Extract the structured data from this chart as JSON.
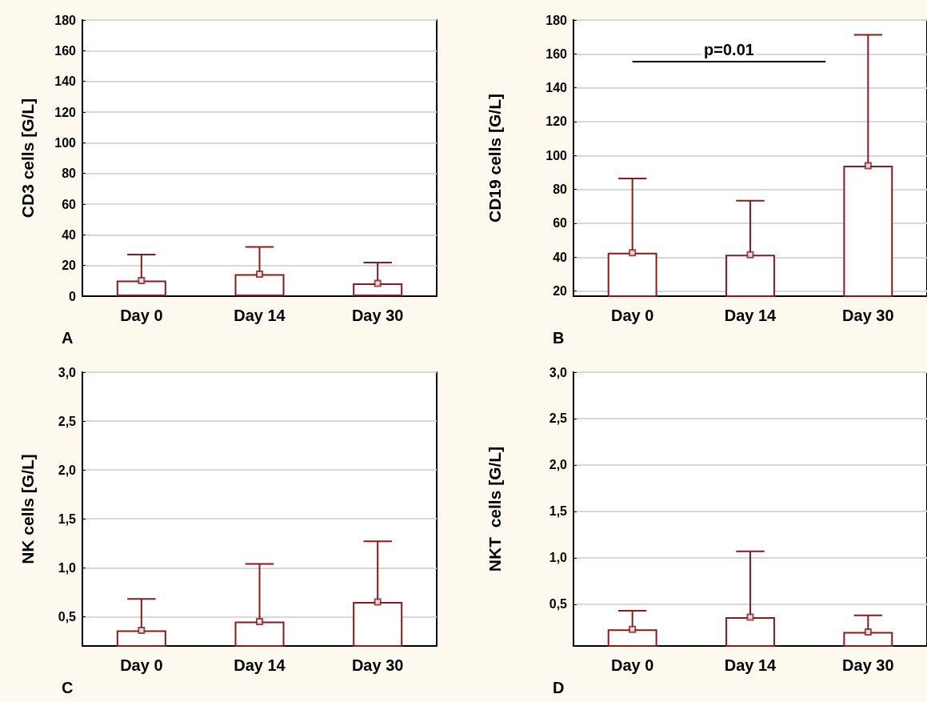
{
  "chart_data": [
    {
      "type": "bar",
      "ylabel": "CD3 cells [G/L]",
      "categories": [
        "Day 0",
        "Day 14",
        "Day 30"
      ],
      "marker": "square",
      "grid": "y",
      "series": [
        {
          "color": "#8b1a1a",
          "values": [
            10.2,
            14.4,
            8.3
          ],
          "errors": [
            [
              10.2,
              27.1
            ],
            [
              14.4,
              32.1
            ],
            [
              8.3,
              21.9
            ]
          ]
        },
        {
          "type": "scatter",
          "color": "#8b1a1a",
          "x": [
            "Day 0",
            "Day 14",
            "Day 30"
          ],
          "values": [
            10.2,
            14.4,
            8.3
          ]
        }
      ],
      "ylim": [
        0,
        180
      ],
      "yticks": [
        0,
        20,
        40,
        60,
        80,
        100,
        120,
        140,
        160,
        180
      ],
      "annotations": [
        "A"
      ]
    },
    {
      "type": "bar",
      "ylabel": "CD19 cells [G/L]",
      "categories": [
        "Day 0",
        "Day 14",
        "Day 30"
      ],
      "marker": "square",
      "grid": "y",
      "series": [
        {
          "color": "#8b1a1a",
          "values": [
            42.6,
            41.5,
            94
          ],
          "errors": [
            [
              42.6,
              86.5
            ],
            [
              41.5,
              73.3
            ],
            [
              94,
              171.3
            ]
          ]
        },
        {
          "type": "scatter",
          "color": "#8b1a1a",
          "x": [
            "Day 0",
            "Day 14",
            "Day 30"
          ],
          "values": [
            42.6,
            41.5,
            94
          ]
        }
      ],
      "ylim": [
        17,
        180
      ],
      "yticks": [
        20,
        40,
        60,
        80,
        100,
        120,
        140,
        160,
        180
      ],
      "annotations": [
        "B",
        "p=0.01"
      ]
    },
    {
      "type": "bar",
      "ylabel": "NK cells [G/L]",
      "categories": [
        "Day 0",
        "Day 14",
        "Day 30"
      ],
      "marker": "square",
      "grid": "y",
      "series": [
        {
          "color": "#8b1a1a",
          "values": [
            0.36,
            0.45,
            0.65
          ],
          "errors": [
            [
              0.36,
              0.68
            ],
            [
              0.45,
              1.04
            ],
            [
              0.65,
              1.27
            ]
          ]
        },
        {
          "type": "scatter",
          "color": "#8b1a1a",
          "x": [
            "Day 0",
            "Day 14",
            "Day 30"
          ],
          "values": [
            0.36,
            0.45,
            0.65
          ]
        }
      ],
      "ylim": [
        0.2,
        3
      ],
      "yticks": [
        {
          "value": 0.5,
          "label": "0,5"
        },
        {
          "value": 1,
          "label": "1,0"
        },
        {
          "value": 1.5,
          "label": "1,5"
        },
        {
          "value": 2,
          "label": "2,0"
        },
        {
          "value": 2.5,
          "label": "2,5"
        },
        {
          "value": 3,
          "label": "3,0"
        }
      ],
      "annotations": [
        "C"
      ]
    },
    {
      "type": "bar",
      "ylabel": "NKT  cells [G/L]",
      "categories": [
        "Day 0",
        "Day 14",
        "Day 30"
      ],
      "marker": "square",
      "grid": "y",
      "series": [
        {
          "color": "#8b1a1a",
          "values": [
            0.23,
            0.36,
            0.2
          ],
          "errors": [
            [
              0.23,
              0.43
            ],
            [
              0.36,
              1.07
            ],
            [
              0.2,
              0.38
            ]
          ]
        },
        {
          "type": "scatter",
          "color": "#8b1a1a",
          "x": [
            "Day 0",
            "Day 14",
            "Day 30"
          ],
          "values": [
            0.23,
            0.36,
            0.2
          ]
        }
      ],
      "ylim": [
        0.05,
        3
      ],
      "yticks": [
        {
          "value": 0.5,
          "label": "0,5"
        },
        {
          "value": 1,
          "label": "1,0"
        },
        {
          "value": 1.5,
          "label": "1,5"
        },
        {
          "value": 2,
          "label": "2,0"
        },
        {
          "value": 2.5,
          "label": "2,5"
        },
        {
          "value": 3,
          "label": "3,0"
        }
      ],
      "annotations": [
        "D"
      ]
    }
  ]
}
